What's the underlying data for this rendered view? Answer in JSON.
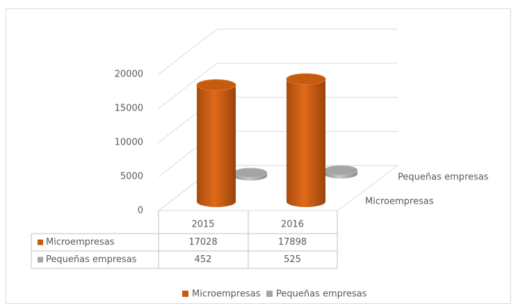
{
  "chart_data": {
    "type": "bar3d",
    "categories": [
      "2015",
      "2016"
    ],
    "series": [
      {
        "name": "Microempresas",
        "color": "#c55a11",
        "values": [
          17028,
          17898
        ]
      },
      {
        "name": "Pequeñas empresas",
        "color": "#a5a5a5",
        "values": [
          452,
          525
        ]
      }
    ],
    "ylim": [
      0,
      20000
    ],
    "yticks": [
      0,
      5000,
      10000,
      15000,
      20000
    ],
    "grid": true,
    "legend": "bottom",
    "data_table": true
  }
}
